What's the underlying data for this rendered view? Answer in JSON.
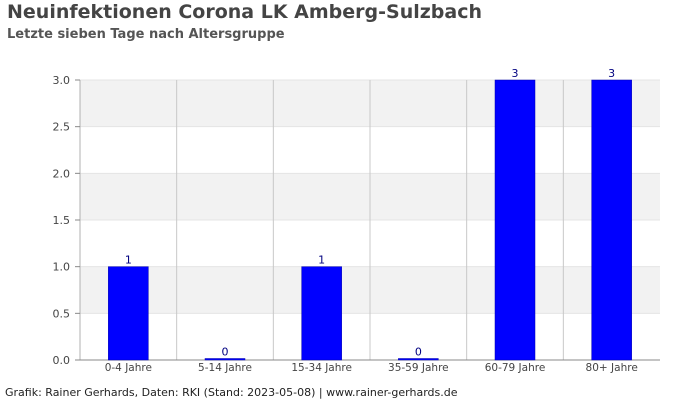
{
  "title": "Neuinfektionen Corona LK Amberg-Sulzbach",
  "subtitle": "Letzte sieben Tage nach Altersgruppe",
  "footer": "Grafik: Rainer Gerhards, Daten: RKI (Stand: 2023-05-08) | www.rainer-gerhards.de",
  "colors": {
    "bar": "#0000ff",
    "label": "#000080",
    "band": "#f2f2f2",
    "grid": "#c8c8c8",
    "axis_text": "#444444"
  },
  "chart_data": {
    "type": "bar",
    "title": "Neuinfektionen Corona LK Amberg-Sulzbach",
    "subtitle": "Letzte sieben Tage nach Altersgruppe",
    "categories": [
      "0-4 Jahre",
      "5-14 Jahre",
      "15-34 Jahre",
      "35-59 Jahre",
      "60-79 Jahre",
      "80+ Jahre"
    ],
    "values": [
      1,
      0,
      1,
      0,
      3,
      3
    ],
    "data_labels": [
      "1",
      "0",
      "1",
      "0",
      "3",
      "3"
    ],
    "y_ticks": [
      "0.0",
      "0.5",
      "1.0",
      "1.5",
      "2.0",
      "2.5",
      "3.0"
    ],
    "ylim": [
      0,
      3
    ],
    "xlabel": "",
    "ylabel": "",
    "grid": true,
    "legend": "none"
  }
}
